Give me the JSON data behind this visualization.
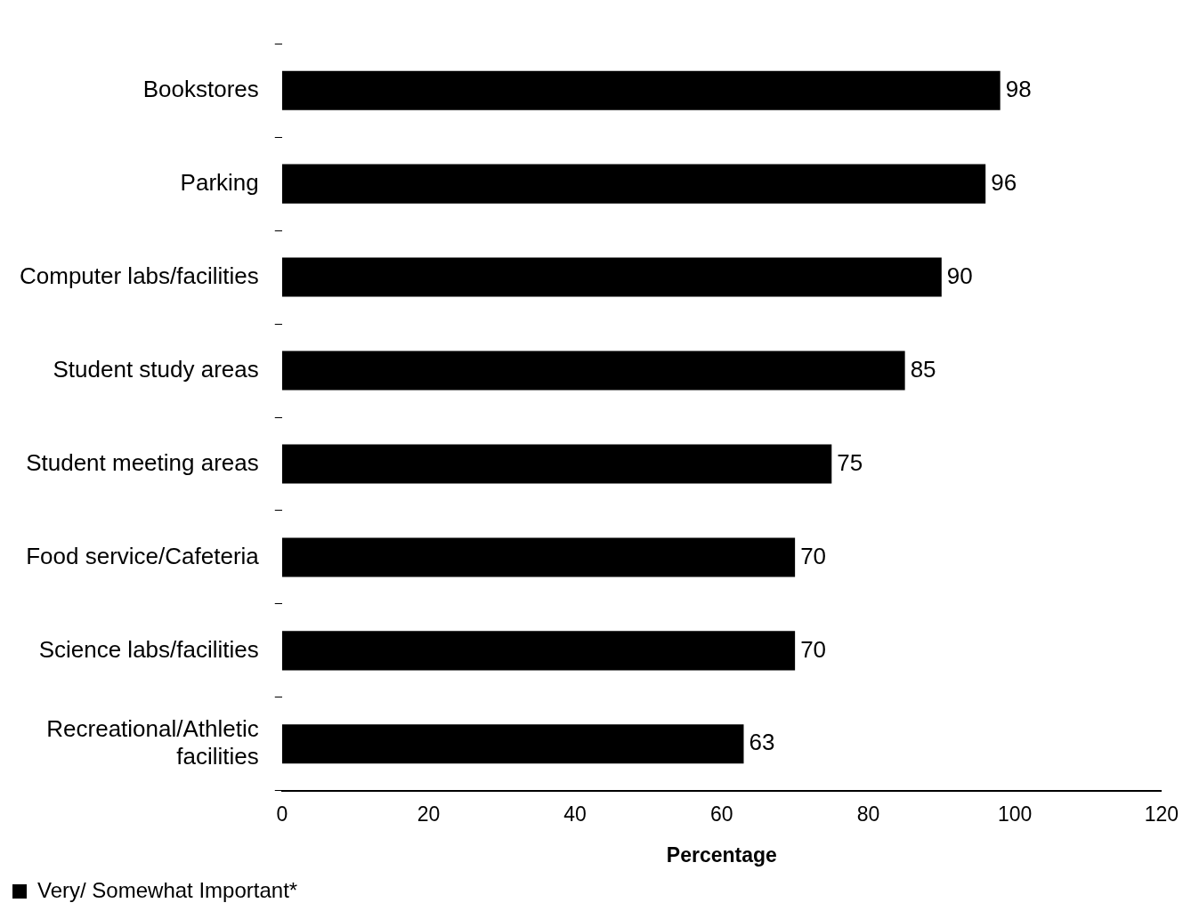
{
  "chart_data": {
    "type": "bar",
    "orientation": "horizontal",
    "xlabel": "Percentage",
    "categories": [
      "Bookstores",
      "Parking",
      "Computer labs/facilities",
      "Student study areas",
      "Student meeting areas",
      "Food service/Cafeteria",
      "Science labs/facilities",
      "Recreational/Athletic facilities"
    ],
    "series": [
      {
        "name": "Very/ Somewhat Important*",
        "color": "#000000",
        "values": [
          98,
          96,
          90,
          85,
          75,
          70,
          70,
          63
        ]
      }
    ],
    "xlim": [
      0,
      120
    ],
    "xticks": [
      0,
      20,
      40,
      60,
      80,
      100,
      120
    ],
    "data_labels": true,
    "grid": false,
    "legend": "bottom left"
  }
}
